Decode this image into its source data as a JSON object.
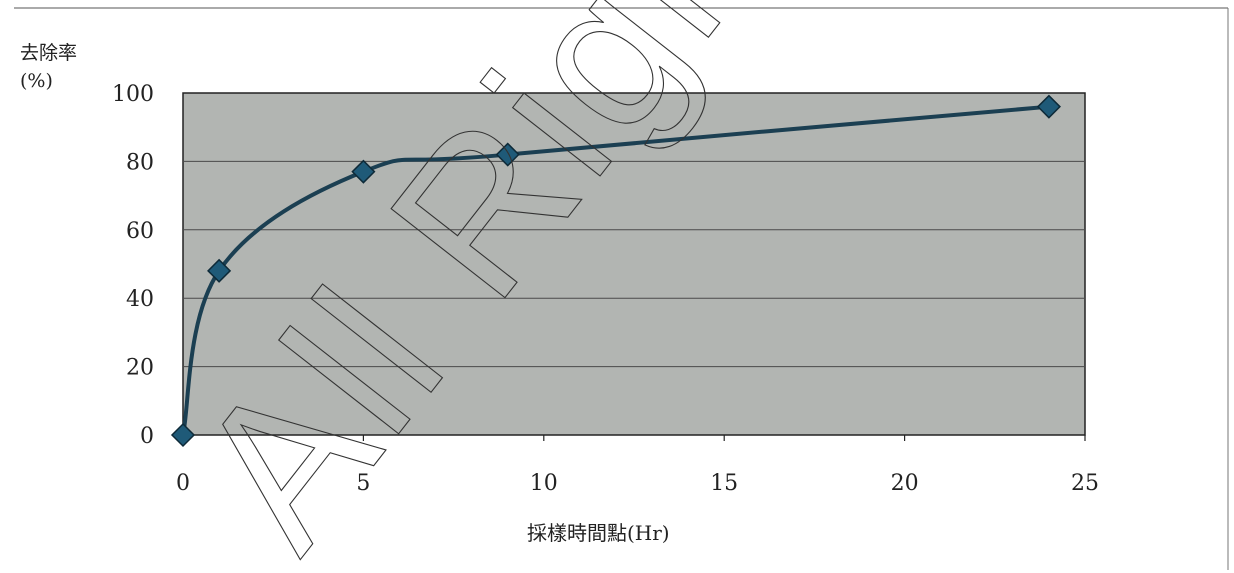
{
  "chart_data": {
    "type": "line",
    "title": "",
    "ylabel_line1": "去除率",
    "ylabel_line2": "(%)",
    "xlabel": "採樣時間點(Hr)",
    "xlim": [
      0,
      25
    ],
    "ylim": [
      0,
      100
    ],
    "x_ticks": [
      0,
      5,
      10,
      15,
      20,
      25
    ],
    "y_ticks": [
      0,
      20,
      40,
      60,
      80,
      100
    ],
    "grid": "horizontal",
    "series": [
      {
        "x": [
          0,
          1,
          5,
          9,
          24
        ],
        "y": [
          0,
          48,
          77,
          82,
          96
        ]
      }
    ],
    "colors": {
      "plot_bg": "#b2b5b2",
      "line": "#1b3f52",
      "marker": "#1f5a78",
      "marker_edge": "#0e2a38",
      "grid": "#4a4a4a",
      "text": "#222222"
    }
  },
  "watermark": {
    "text": "All Rights Reserved"
  }
}
